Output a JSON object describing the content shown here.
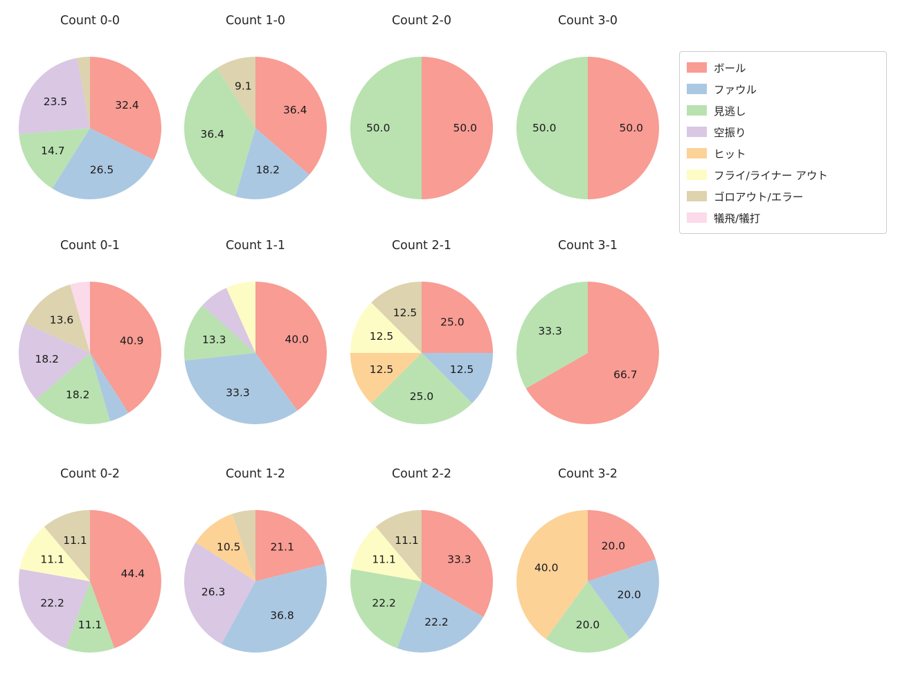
{
  "figure": {
    "background": "#ffffff",
    "text_color": "#262626"
  },
  "legend": {
    "position": "upper right",
    "items": [
      {
        "key": "ball",
        "label": "ボール",
        "color": "#F89C94"
      },
      {
        "key": "foul",
        "label": "ファウル",
        "color": "#ABC8E2"
      },
      {
        "key": "looking",
        "label": "見逃し",
        "color": "#B9E2B0"
      },
      {
        "key": "swinging",
        "label": "空振り",
        "color": "#D9C7E3"
      },
      {
        "key": "hit",
        "label": "ヒット",
        "color": "#FCD297"
      },
      {
        "key": "flyout",
        "label": "フライ/ライナー アウト",
        "color": "#FEFCC5"
      },
      {
        "key": "groundout",
        "label": "ゴロアウト/エラー",
        "color": "#DDD3AE"
      },
      {
        "key": "sac",
        "label": "犠飛/犠打",
        "color": "#FBDAEA"
      }
    ]
  },
  "chart_data": {
    "type": "pie",
    "start_angle_deg": 90,
    "clockwise": true,
    "units": "percent",
    "label_min_value": 9,
    "grid": "3 rows x 4 columns",
    "charts": [
      {
        "title": "Count 0-0",
        "slices": [
          {
            "category": "ball",
            "value": 32.4
          },
          {
            "category": "foul",
            "value": 26.5
          },
          {
            "category": "looking",
            "value": 14.7
          },
          {
            "category": "swinging",
            "value": 23.5
          },
          {
            "category": "groundout",
            "value": 2.9
          }
        ]
      },
      {
        "title": "Count 1-0",
        "slices": [
          {
            "category": "ball",
            "value": 36.4
          },
          {
            "category": "foul",
            "value": 18.2
          },
          {
            "category": "looking",
            "value": 36.4
          },
          {
            "category": "groundout",
            "value": 9.1
          }
        ]
      },
      {
        "title": "Count 2-0",
        "slices": [
          {
            "category": "ball",
            "value": 50.0
          },
          {
            "category": "looking",
            "value": 50.0
          }
        ]
      },
      {
        "title": "Count 3-0",
        "slices": [
          {
            "category": "ball",
            "value": 50.0
          },
          {
            "category": "looking",
            "value": 50.0
          }
        ]
      },
      {
        "title": "Count 0-1",
        "slices": [
          {
            "category": "ball",
            "value": 40.9
          },
          {
            "category": "foul",
            "value": 4.5
          },
          {
            "category": "looking",
            "value": 18.2
          },
          {
            "category": "swinging",
            "value": 18.2
          },
          {
            "category": "groundout",
            "value": 13.6
          },
          {
            "category": "sac",
            "value": 4.5
          }
        ]
      },
      {
        "title": "Count 1-1",
        "slices": [
          {
            "category": "ball",
            "value": 40.0
          },
          {
            "category": "foul",
            "value": 33.3
          },
          {
            "category": "looking",
            "value": 13.3
          },
          {
            "category": "swinging",
            "value": 6.7
          },
          {
            "category": "flyout",
            "value": 6.7
          }
        ]
      },
      {
        "title": "Count 2-1",
        "slices": [
          {
            "category": "ball",
            "value": 25.0
          },
          {
            "category": "foul",
            "value": 12.5
          },
          {
            "category": "looking",
            "value": 25.0
          },
          {
            "category": "hit",
            "value": 12.5
          },
          {
            "category": "flyout",
            "value": 12.5
          },
          {
            "category": "groundout",
            "value": 12.5
          }
        ]
      },
      {
        "title": "Count 3-1",
        "slices": [
          {
            "category": "ball",
            "value": 66.7
          },
          {
            "category": "looking",
            "value": 33.3
          }
        ]
      },
      {
        "title": "Count 0-2",
        "slices": [
          {
            "category": "ball",
            "value": 44.4
          },
          {
            "category": "looking",
            "value": 11.1
          },
          {
            "category": "swinging",
            "value": 22.2
          },
          {
            "category": "flyout",
            "value": 11.1
          },
          {
            "category": "groundout",
            "value": 11.1
          }
        ]
      },
      {
        "title": "Count 1-2",
        "slices": [
          {
            "category": "ball",
            "value": 21.1
          },
          {
            "category": "foul",
            "value": 36.8
          },
          {
            "category": "swinging",
            "value": 26.3
          },
          {
            "category": "hit",
            "value": 10.5
          },
          {
            "category": "groundout",
            "value": 5.3
          }
        ]
      },
      {
        "title": "Count 2-2",
        "slices": [
          {
            "category": "ball",
            "value": 33.3
          },
          {
            "category": "foul",
            "value": 22.2
          },
          {
            "category": "looking",
            "value": 22.2
          },
          {
            "category": "flyout",
            "value": 11.1
          },
          {
            "category": "groundout",
            "value": 11.1
          }
        ]
      },
      {
        "title": "Count 3-2",
        "slices": [
          {
            "category": "ball",
            "value": 20.0
          },
          {
            "category": "foul",
            "value": 20.0
          },
          {
            "category": "looking",
            "value": 20.0
          },
          {
            "category": "hit",
            "value": 40.0
          }
        ]
      }
    ]
  }
}
